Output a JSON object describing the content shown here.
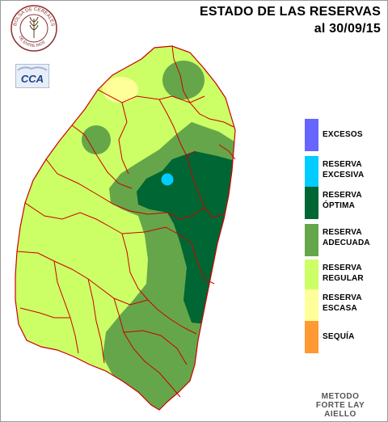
{
  "header": {
    "title_line1": "ESTADO DE LAS RESERVAS",
    "title_line2": "al 30/09/15"
  },
  "logos": {
    "seal_text_top": "BOLSA DE CEREALES",
    "seal_text_bottom": "DE ENTRE RIOS",
    "cca_text": "CCA"
  },
  "legend": [
    {
      "line1": "EXCESOS",
      "line2": "",
      "color": "#6666ff"
    },
    {
      "line1": "RESERVA",
      "line2": "EXCESIVA",
      "color": "#00ccff"
    },
    {
      "line1": "RESERVA",
      "line2": "ÓPTIMA",
      "color": "#006633"
    },
    {
      "line1": "RESERVA",
      "line2": "ADECUADA",
      "color": "#66a64a"
    },
    {
      "line1": "RESERVA",
      "line2": "REGULAR",
      "color": "#ccff66"
    },
    {
      "line1": "RESERVA",
      "line2": "ESCASA",
      "color": "#ffff99"
    },
    {
      "line1": "SEQUÍA",
      "line2": "",
      "color": "#ff9933"
    }
  ],
  "footer": {
    "method_line1": "METODO",
    "method_line2": "FORTE LAY",
    "method_line3": "AIELLO"
  },
  "map_colors": {
    "border": "#cc0000",
    "regular": "#ccff66",
    "escasa": "#ffff99",
    "adecuada": "#66a64a",
    "optima": "#006633",
    "excesiva": "#00ccff"
  }
}
